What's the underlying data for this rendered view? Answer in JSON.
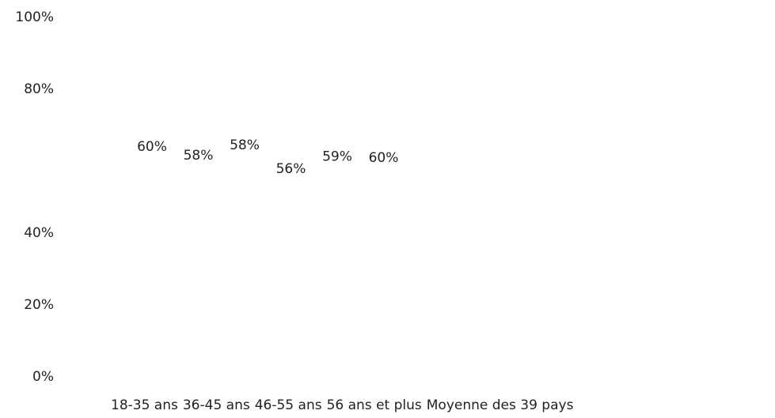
{
  "chart_data": {
    "type": "bar",
    "categories": [
      "18-35 ans",
      "36-45 ans",
      "46-55 ans",
      "56 ans et plus",
      "Moyenne des 39 pays",
      null
    ],
    "values": [
      60,
      58,
      58,
      56,
      59,
      60
    ],
    "value_labels": [
      "60%",
      "58%",
      "58%",
      "56%",
      "59%",
      "60%"
    ],
    "color": "#ffffff",
    "ylim": [
      0,
      100
    ],
    "yticks": [
      {
        "value": 0,
        "label": "0%"
      },
      {
        "value": 20,
        "label": "20%"
      },
      {
        "value": 40,
        "label": "40%"
      },
      {
        "value": 80,
        "label": "80%"
      },
      {
        "value": 100,
        "label": "100%"
      }
    ],
    "grid": false
  }
}
